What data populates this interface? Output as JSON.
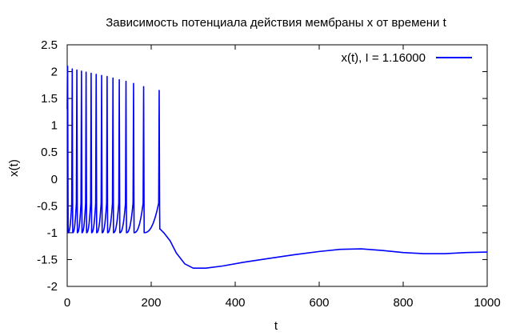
{
  "chart_data": {
    "type": "line",
    "title": "Зависимость потенциала действия мембраны x от времени t",
    "xlabel": "t",
    "ylabel": "x(t)",
    "xlim": [
      0,
      1000
    ],
    "ylim": [
      -2,
      2.5
    ],
    "xticks": [
      0,
      200,
      400,
      600,
      800,
      1000
    ],
    "xtick_labels": [
      "0",
      "200",
      "400",
      "600",
      "800",
      "1000"
    ],
    "yticks": [
      -2,
      -1.5,
      -1,
      -0.5,
      0,
      0.5,
      1,
      1.5,
      2,
      2.5
    ],
    "ytick_labels": [
      "-2",
      "-1.5",
      "-1",
      "-0.5",
      "0",
      "0.5",
      "1",
      "1.5",
      "2",
      "2.5"
    ],
    "grid": false,
    "legend_position": "top-right",
    "series": [
      {
        "name": "x(t), I = 1.16000",
        "color": "#0000ff",
        "spikes": [
          {
            "t": 1,
            "peak": 2.1
          },
          {
            "t": 12,
            "peak": 2.05
          },
          {
            "t": 23,
            "peak": 2.03
          },
          {
            "t": 34,
            "peak": 2.01
          },
          {
            "t": 45,
            "peak": 1.99
          },
          {
            "t": 57,
            "peak": 1.97
          },
          {
            "t": 69,
            "peak": 1.95
          },
          {
            "t": 82,
            "peak": 1.93
          },
          {
            "t": 95,
            "peak": 1.91
          },
          {
            "t": 109,
            "peak": 1.88
          },
          {
            "t": 124,
            "peak": 1.85
          },
          {
            "t": 140,
            "peak": 1.82
          },
          {
            "t": 158,
            "peak": 1.78
          },
          {
            "t": 182,
            "peak": 1.72
          },
          {
            "t": 219,
            "peak": 1.65
          }
        ],
        "trough": -1.0,
        "x": [
          221,
          230,
          245,
          260,
          280,
          300,
          330,
          370,
          420,
          480,
          540,
          600,
          650,
          700,
          750,
          800,
          850,
          900,
          950,
          1000
        ],
        "y": [
          -0.93,
          -1.0,
          -1.15,
          -1.38,
          -1.58,
          -1.66,
          -1.66,
          -1.62,
          -1.55,
          -1.48,
          -1.41,
          -1.35,
          -1.31,
          -1.3,
          -1.33,
          -1.37,
          -1.39,
          -1.39,
          -1.37,
          -1.36
        ]
      }
    ]
  }
}
